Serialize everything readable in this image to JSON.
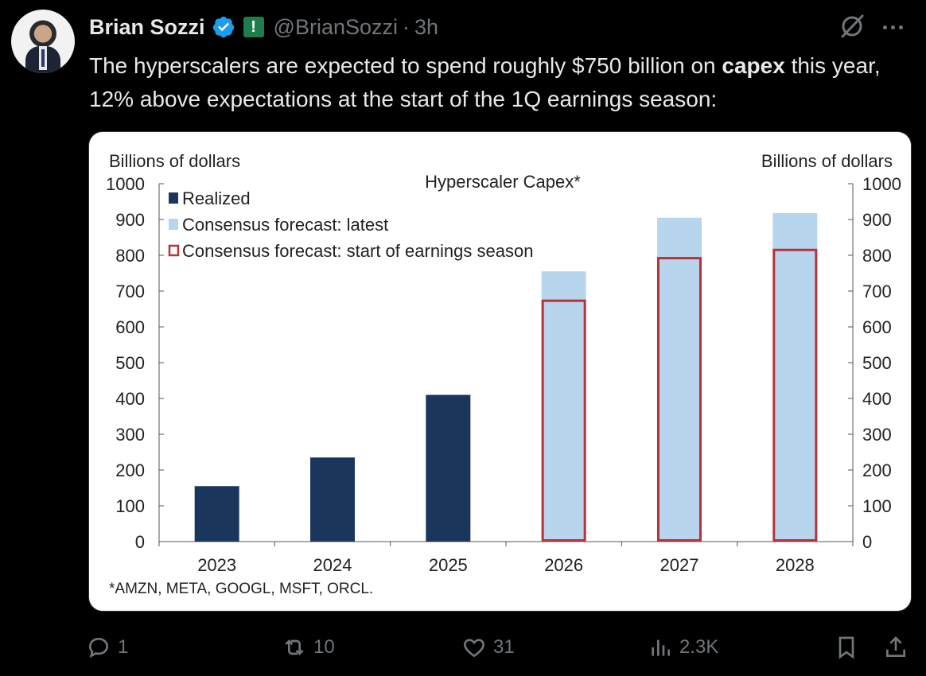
{
  "author": {
    "name": "Brian Sozzi",
    "handle": "@BrianSozzi",
    "separator": "·",
    "time": "3h",
    "badge": "!"
  },
  "tweet": {
    "text_before": "The hyperscalers are expected to spend roughly $750 billion on ",
    "text_bold": "capex",
    "text_after": " this year, 12% above expectations at the start of the 1Q earnings season:"
  },
  "chart_data": {
    "type": "bar",
    "title": "Hyperscaler Capex*",
    "ylabel_left": "Billions of dollars",
    "ylabel_right": "Billions of dollars",
    "ylim": [
      0,
      1000
    ],
    "yticks": [
      0,
      100,
      200,
      300,
      400,
      500,
      600,
      700,
      800,
      900,
      1000
    ],
    "categories": [
      "2023",
      "2024",
      "2025",
      "2026",
      "2027",
      "2028"
    ],
    "series": [
      {
        "name": "Realized",
        "color": "#1b365d",
        "values": [
          155,
          235,
          410,
          null,
          null,
          null
        ]
      },
      {
        "name": "Consensus forecast: latest",
        "color": "#b7d6ee",
        "values": [
          null,
          null,
          null,
          755,
          905,
          918
        ]
      },
      {
        "name": "Consensus forecast: start of earnings season",
        "color": "#b8323a",
        "style": "outline",
        "values": [
          null,
          null,
          null,
          673,
          792,
          815
        ]
      }
    ],
    "footnote": "*AMZN, META, GOOGL, MSFT, ORCL.",
    "grid": false,
    "legend_position": "top-left"
  },
  "actions": {
    "replies": "1",
    "reposts": "10",
    "likes": "31",
    "views": "2.3K"
  }
}
